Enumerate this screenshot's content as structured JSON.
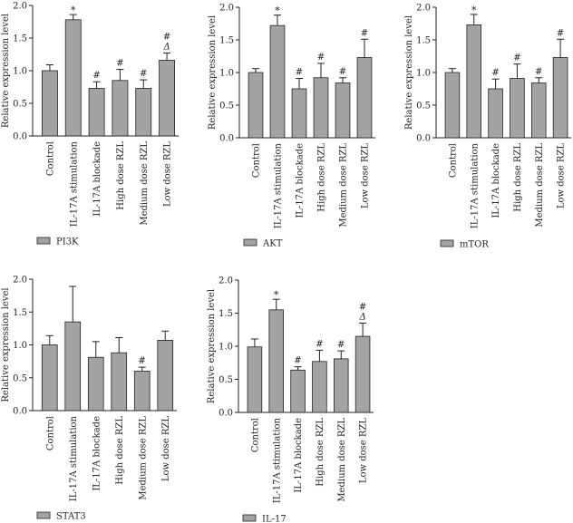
{
  "figure": {
    "bar_color": "#a3a3a3",
    "edge_color": "#222222"
  },
  "chart_data": [
    {
      "type": "bar",
      "title": "",
      "ylabel": "Relative expression level",
      "xlabel": "",
      "legend": "PI3K",
      "ylim": [
        0,
        2.0
      ],
      "yticks": [
        "0.0",
        "0.5",
        "1.0",
        "1.5",
        "2.0"
      ],
      "categories": [
        "Control",
        "IL-17A stimulation",
        "IL-17A blockade",
        "High dose RZL",
        "Medium dose RZL",
        "Low dose RZL"
      ],
      "values": [
        1.0,
        1.78,
        0.73,
        0.85,
        0.73,
        1.16
      ],
      "errors": [
        0.09,
        0.08,
        0.1,
        0.17,
        0.13,
        0.11
      ],
      "annotations": [
        "",
        "*",
        "#",
        "#",
        "#",
        "#\nΔ"
      ]
    },
    {
      "type": "bar",
      "title": "",
      "ylabel": "Relative expression level",
      "xlabel": "",
      "legend": "AKT",
      "ylim": [
        0,
        2.0
      ],
      "yticks": [
        "0.0",
        "0.5",
        "1.0",
        "1.5",
        "2.0"
      ],
      "categories": [
        "Control",
        "IL-17A stimulation",
        "IL-17A blockade",
        "High dose RZL",
        "Medium dose RZL",
        "Low dose RZL"
      ],
      "values": [
        1.0,
        1.72,
        0.75,
        0.92,
        0.84,
        1.23
      ],
      "errors": [
        0.06,
        0.16,
        0.16,
        0.22,
        0.08,
        0.28
      ],
      "annotations": [
        "",
        "*",
        "#",
        "#",
        "#",
        "#"
      ]
    },
    {
      "type": "bar",
      "title": "",
      "ylabel": "Relative expression level",
      "xlabel": "",
      "legend": "mTOR",
      "ylim": [
        0,
        2.0
      ],
      "yticks": [
        "0.0",
        "0.5",
        "1.0",
        "1.5",
        "2.0"
      ],
      "categories": [
        "Control",
        "IL-17A stimulation",
        "IL-17A blockade",
        "High dose RZL",
        "Medium dose RZL",
        "Low dose RZL"
      ],
      "values": [
        1.0,
        1.73,
        0.75,
        0.91,
        0.84,
        1.23
      ],
      "errors": [
        0.06,
        0.16,
        0.15,
        0.22,
        0.08,
        0.28
      ],
      "annotations": [
        "",
        "*",
        "#",
        "#",
        "#",
        "#"
      ]
    },
    {
      "type": "bar",
      "title": "",
      "ylabel": "Relative expression level",
      "xlabel": "",
      "legend": "STAT3",
      "ylim": [
        0,
        2.0
      ],
      "yticks": [
        "0.0",
        "0.5",
        "1.0",
        "1.5",
        "2.0"
      ],
      "categories": [
        "Control",
        "IL-17A stimulation",
        "IL-17A blockade",
        "High dose RZL",
        "Medium dose RZL",
        "Low dose RZL"
      ],
      "values": [
        1.0,
        1.35,
        0.81,
        0.88,
        0.6,
        1.07
      ],
      "errors": [
        0.14,
        0.54,
        0.24,
        0.23,
        0.06,
        0.14
      ],
      "annotations": [
        "",
        "",
        "",
        "",
        "#",
        ""
      ]
    },
    {
      "type": "bar",
      "title": "",
      "ylabel": "Relative expression level",
      "xlabel": "",
      "legend": "IL-17",
      "ylim": [
        0,
        2.0
      ],
      "yticks": [
        "0.0",
        "0.5",
        "1.0",
        "1.5",
        "2.0"
      ],
      "categories": [
        "Control",
        "IL-17A stimulation",
        "IL-17A blockade",
        "High dose RZL",
        "Medium dose RZL",
        "Low dose RZL"
      ],
      "values": [
        0.99,
        1.55,
        0.64,
        0.77,
        0.81,
        1.15
      ],
      "errors": [
        0.12,
        0.16,
        0.05,
        0.17,
        0.12,
        0.2
      ],
      "annotations": [
        "",
        "*",
        "#",
        "#",
        "#",
        "#\nΔ"
      ]
    }
  ]
}
